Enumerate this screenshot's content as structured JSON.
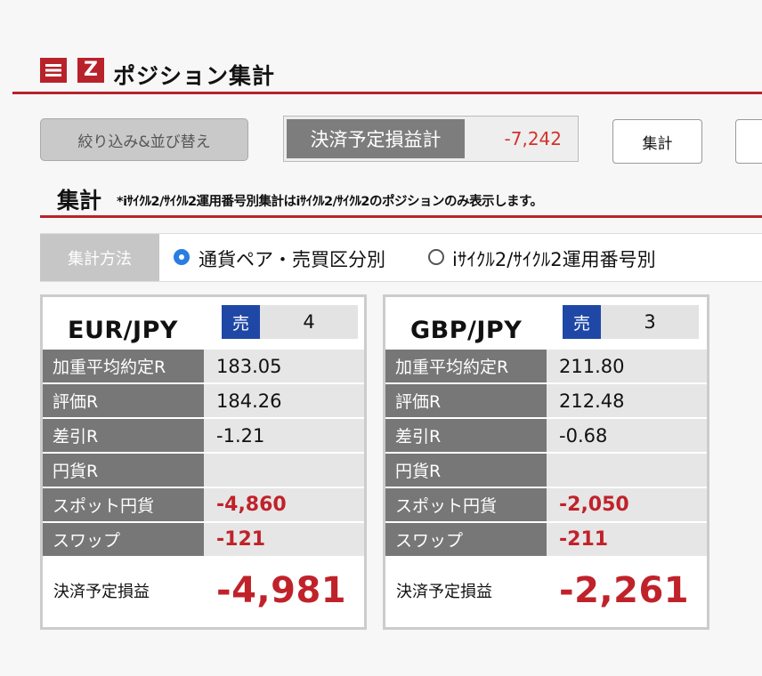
{
  "header": {
    "menu_icon": "menu-icon",
    "brand_icon": "z-logo-icon",
    "brand_letter": "Z",
    "title": "ポジション集計"
  },
  "toolbar": {
    "filter_label": "絞り込み&並び替え",
    "total_label": "決済予定損益計",
    "total_value": "-7,242",
    "aggregate_label": "集計"
  },
  "section": {
    "title": "集計",
    "note": "*iｻｲｸﾙ2/ｻｲｸﾙ2運用番号別集計はiｻｲｸﾙ2/ｻｲｸﾙ2のポジションのみ表示します。"
  },
  "method": {
    "label": "集計方法",
    "options": [
      {
        "label": "通貨ペア・売買区分別",
        "selected": true
      },
      {
        "label": "iｻｲｸﾙ2/ｻｲｸﾙ2運用番号別",
        "selected": false
      }
    ]
  },
  "cards": [
    {
      "pair": "EUR/JPY",
      "side": "売",
      "quantity": "4",
      "rows": [
        {
          "label": "加重平均約定R",
          "value": "183.05",
          "red": false
        },
        {
          "label": "評価R",
          "value": "184.26",
          "red": false
        },
        {
          "label": "差引R",
          "value": "-1.21",
          "red": false
        },
        {
          "label": "円貨R",
          "value": "",
          "red": false
        },
        {
          "label": "スポット円貨",
          "value": "-4,860",
          "red": true
        },
        {
          "label": "スワップ",
          "value": "-121",
          "red": true
        }
      ],
      "pl_label": "決済予定損益",
      "pl_value": "-4,981"
    },
    {
      "pair": "GBP/JPY",
      "side": "売",
      "quantity": "3",
      "rows": [
        {
          "label": "加重平均約定R",
          "value": "211.80",
          "red": false
        },
        {
          "label": "評価R",
          "value": "212.48",
          "red": false
        },
        {
          "label": "差引R",
          "value": "-0.68",
          "red": false
        },
        {
          "label": "円貨R",
          "value": "",
          "red": false
        },
        {
          "label": "スポット円貨",
          "value": "-2,050",
          "red": true
        },
        {
          "label": "スワップ",
          "value": "-211",
          "red": true
        }
      ],
      "pl_label": "決済予定損益",
      "pl_value": "-2,261"
    }
  ],
  "colors": {
    "accent_red": "#b8222a",
    "negative_red": "#c0222a",
    "side_blue": "#1f48a6",
    "radio_blue": "#2a7de1"
  }
}
